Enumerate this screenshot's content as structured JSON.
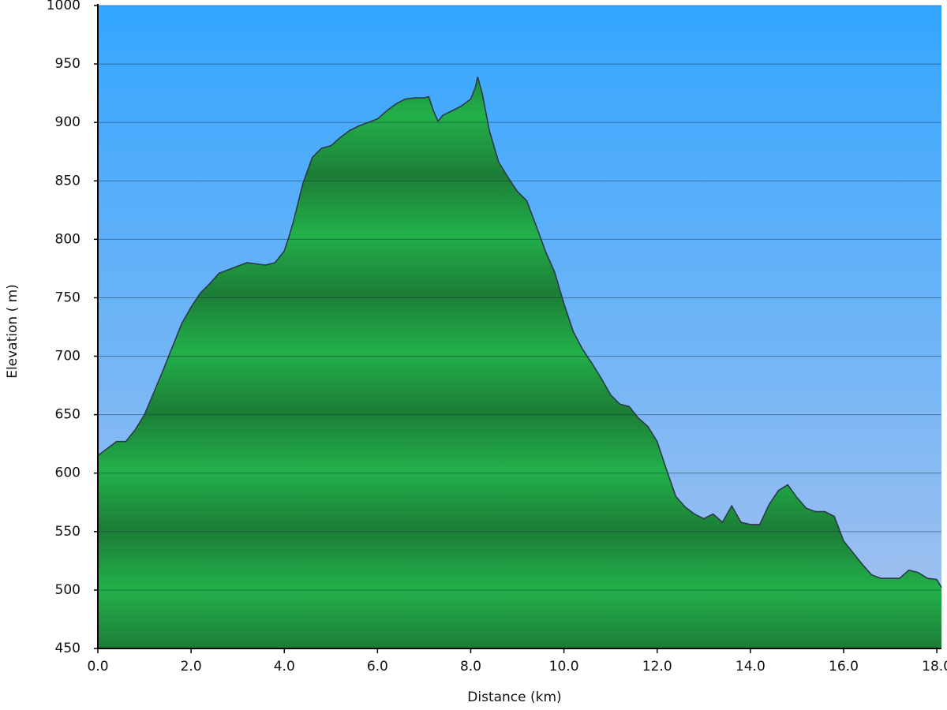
{
  "chart_data": {
    "type": "area",
    "xlabel": "Distance (km)",
    "ylabel": "Elevation ( m)",
    "color": "#22b04a",
    "line_color": "#2b3a4a",
    "grid": true,
    "xlim": [
      0,
      18.1
    ],
    "ylim": [
      450,
      1000
    ],
    "xticks": [
      {
        "value": 0,
        "label": "0.0"
      },
      {
        "value": 2,
        "label": "2.0"
      },
      {
        "value": 4,
        "label": "4.0"
      },
      {
        "value": 6,
        "label": "6.0"
      },
      {
        "value": 8,
        "label": "8.0"
      },
      {
        "value": 10,
        "label": "10.0"
      },
      {
        "value": 12,
        "label": "12.0"
      },
      {
        "value": 14,
        "label": "14.0"
      },
      {
        "value": 16,
        "label": "16.0"
      },
      {
        "value": 18,
        "label": "18.0"
      }
    ],
    "yticks": [
      450,
      500,
      550,
      600,
      650,
      700,
      750,
      800,
      850,
      900,
      950,
      1000
    ],
    "x": [
      0,
      0.2,
      0.4,
      0.6,
      0.8,
      1.0,
      1.2,
      1.4,
      1.6,
      1.8,
      2.0,
      2.2,
      2.4,
      2.6,
      2.8,
      3.0,
      3.2,
      3.4,
      3.6,
      3.8,
      4.0,
      4.1,
      4.2,
      4.4,
      4.6,
      4.8,
      5.0,
      5.2,
      5.4,
      5.6,
      5.8,
      6.0,
      6.2,
      6.4,
      6.6,
      6.8,
      7.0,
      7.1,
      7.2,
      7.3,
      7.4,
      7.6,
      7.8,
      8.0,
      8.1,
      8.15,
      8.25,
      8.4,
      8.6,
      8.8,
      9.0,
      9.2,
      9.4,
      9.6,
      9.8,
      10.0,
      10.2,
      10.4,
      10.6,
      10.8,
      11.0,
      11.2,
      11.4,
      11.6,
      11.8,
      12.0,
      12.2,
      12.4,
      12.6,
      12.8,
      13.0,
      13.2,
      13.4,
      13.6,
      13.8,
      14.0,
      14.2,
      14.4,
      14.6,
      14.8,
      15.0,
      15.2,
      15.4,
      15.6,
      15.8,
      16.0,
      16.2,
      16.4,
      16.6,
      16.8,
      17.0,
      17.2,
      17.4,
      17.6,
      17.8,
      18.0,
      18.1
    ],
    "values": [
      615,
      621,
      627,
      627,
      637,
      650,
      669,
      688,
      708,
      728,
      742,
      754,
      762,
      771,
      774,
      777,
      780,
      779,
      778,
      780,
      790,
      802,
      816,
      848,
      870,
      878,
      880,
      887,
      893,
      897,
      900,
      903,
      910,
      916,
      920,
      921,
      921,
      922,
      910,
      901,
      906,
      910,
      914,
      920,
      930,
      939,
      924,
      893,
      866,
      853,
      841,
      833,
      812,
      790,
      772,
      745,
      721,
      706,
      694,
      681,
      667,
      659,
      657,
      647,
      640,
      627,
      603,
      580,
      571,
      565,
      561,
      565,
      558,
      572,
      558,
      556,
      556,
      573,
      585,
      590,
      579,
      570,
      567,
      567,
      563,
      542,
      532,
      522,
      513,
      510,
      510,
      510,
      517,
      515,
      510,
      509,
      502
    ]
  }
}
